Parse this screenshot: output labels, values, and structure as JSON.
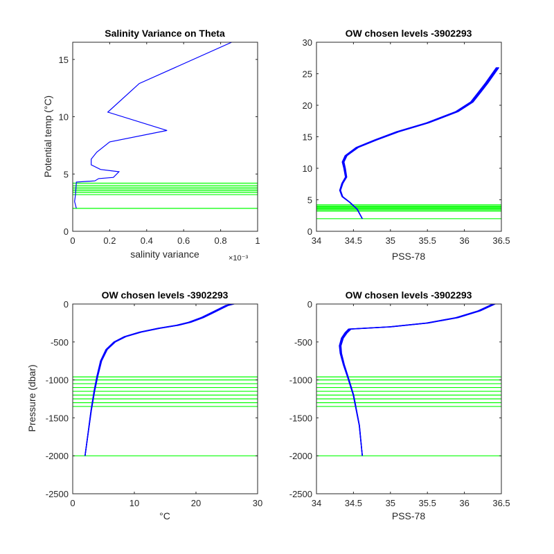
{
  "figure": {
    "background": "#ffffff",
    "profile_color": "#0000ff",
    "level_color": "#00ff00",
    "axis_color": "#262626"
  },
  "chart_data": [
    {
      "type": "line",
      "title": "Salinity Variance on Theta",
      "xlabel": "salinity variance",
      "ylabel": "Potential temp (°C)",
      "x_multiplier_label": "×10⁻³",
      "xlim": [
        0,
        1
      ],
      "ylim": [
        0,
        16.5
      ],
      "xticks": [
        0,
        0.2,
        0.4,
        0.6,
        0.8,
        1
      ],
      "xtick_labels": [
        "0",
        "0.2",
        "0.4",
        "0.6",
        "0.8",
        "1"
      ],
      "yticks": [
        0,
        5,
        10,
        15
      ],
      "ytick_labels": [
        "0",
        "5",
        "10",
        "15"
      ],
      "series": [
        {
          "x": [
            0.02,
            0.01,
            0.015,
            0.02,
            0.12,
            0.14,
            0.22,
            0.25,
            0.15,
            0.1,
            0.1,
            0.13,
            0.2,
            0.51,
            0.19,
            0.36,
            0.86
          ],
          "y": [
            2.0,
            2.6,
            3.2,
            4.3,
            4.4,
            4.6,
            4.7,
            5.2,
            5.4,
            5.8,
            6.3,
            6.9,
            7.8,
            8.8,
            10.4,
            12.9,
            16.5
          ]
        }
      ],
      "hlines": [
        2.0,
        3.2,
        3.4,
        3.55,
        3.7,
        3.85,
        4.0,
        4.2
      ]
    },
    {
      "type": "line",
      "title": "OW chosen levels -3902293",
      "xlabel": "PSS-78",
      "ylabel": "",
      "xlim": [
        34,
        36.5
      ],
      "ylim": [
        0,
        30
      ],
      "xticks": [
        34,
        34.5,
        35,
        35.5,
        36,
        36.5
      ],
      "xtick_labels": [
        "34",
        "34.5",
        "35",
        "35.5",
        "36",
        "36.5"
      ],
      "yticks": [
        0,
        5,
        10,
        15,
        20,
        25,
        30
      ],
      "ytick_labels": [
        "0",
        "5",
        "10",
        "15",
        "20",
        "25",
        "30"
      ],
      "series": [
        {
          "x": [
            34.62,
            34.55,
            34.45,
            34.35,
            34.32,
            34.35,
            34.4,
            34.38,
            34.36,
            34.4,
            34.55,
            34.8,
            35.1,
            35.5,
            35.9,
            36.1,
            36.2,
            36.3,
            36.45
          ],
          "y": [
            2,
            3.5,
            4.6,
            5.5,
            6.5,
            7.6,
            8.6,
            10,
            11,
            12,
            13.3,
            14.5,
            15.8,
            17.2,
            19,
            20.5,
            22,
            23.5,
            26
          ]
        }
      ],
      "hlines": [
        2.0,
        3.2,
        3.4,
        3.55,
        3.7,
        3.85,
        4.0,
        4.2
      ]
    },
    {
      "type": "line",
      "title": "OW chosen levels -3902293",
      "xlabel": "°C",
      "ylabel": "Pressure (dbar)",
      "xlim": [
        0,
        30
      ],
      "ylim": [
        -2500,
        0
      ],
      "xticks": [
        0,
        10,
        20,
        30
      ],
      "xtick_labels": [
        "0",
        "10",
        "20",
        "30"
      ],
      "yticks": [
        -2500,
        -2000,
        -1500,
        -1000,
        -500,
        0
      ],
      "ytick_labels": [
        "-2500",
        "-2000",
        "-1500",
        "-1000",
        "-500",
        "0"
      ],
      "series": [
        {
          "x": [
            2.0,
            2.5,
            3.0,
            3.5,
            4.0,
            4.6,
            5.5,
            6.8,
            8.5,
            11,
            14,
            17,
            19,
            21,
            22.5,
            24,
            25,
            26
          ],
          "y": [
            -2000,
            -1700,
            -1400,
            -1150,
            -950,
            -750,
            -600,
            -500,
            -430,
            -370,
            -320,
            -280,
            -240,
            -180,
            -120,
            -60,
            -20,
            0
          ]
        }
      ],
      "hlines": [
        -2000,
        -1350,
        -1300,
        -1250,
        -1200,
        -1150,
        -1100,
        -1050,
        -1000,
        -960
      ]
    },
    {
      "type": "line",
      "title": "OW chosen levels -3902293",
      "xlabel": "PSS-78",
      "ylabel": "",
      "xlim": [
        34,
        36.5
      ],
      "ylim": [
        -2500,
        0
      ],
      "xticks": [
        34,
        34.5,
        35,
        35.5,
        36,
        36.5
      ],
      "xtick_labels": [
        "34",
        "34.5",
        "35",
        "35.5",
        "36",
        "36.5"
      ],
      "yticks": [
        -2500,
        -2000,
        -1500,
        -1000,
        -500,
        0
      ],
      "ytick_labels": [
        "-2500",
        "-2000",
        "-1500",
        "-1000",
        "-500",
        "0"
      ],
      "series": [
        {
          "x": [
            34.62,
            34.58,
            34.5,
            34.42,
            34.37,
            34.33,
            34.32,
            34.35,
            34.4,
            34.45,
            35.0,
            35.5,
            35.9,
            36.2,
            36.4
          ],
          "y": [
            -2000,
            -1600,
            -1200,
            -950,
            -800,
            -650,
            -550,
            -450,
            -380,
            -330,
            -300,
            -250,
            -180,
            -90,
            0
          ]
        }
      ],
      "hlines": [
        -2000,
        -1350,
        -1300,
        -1250,
        -1200,
        -1150,
        -1100,
        -1050,
        -1000,
        -960
      ]
    }
  ]
}
